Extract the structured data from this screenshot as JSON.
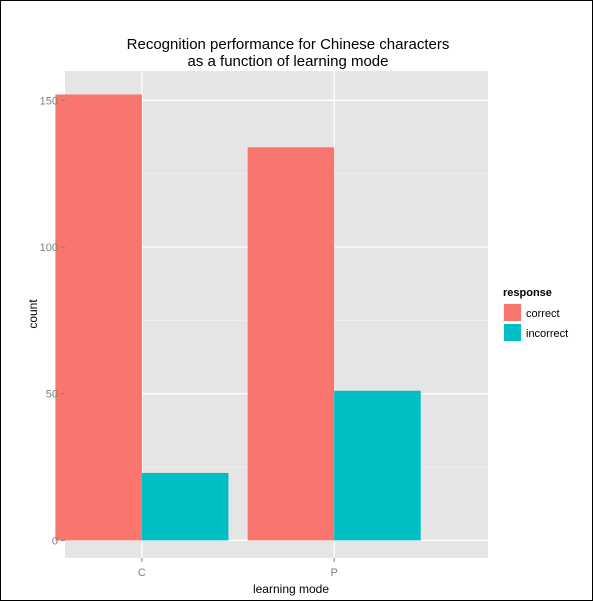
{
  "chart_data": {
    "type": "bar",
    "title_lines": [
      "Recognition performance for Chinese characters",
      "as a function of learning mode"
    ],
    "xlabel": "learning mode",
    "ylabel": "count",
    "categories": [
      "C",
      "P"
    ],
    "series": [
      {
        "name": "correct",
        "values": [
          152,
          134
        ],
        "color": "#F8766D"
      },
      {
        "name": "incorrect",
        "values": [
          23,
          51
        ],
        "color": "#00BFC4"
      }
    ],
    "ylim": [
      -6,
      160
    ],
    "yticks": [
      0,
      50,
      100,
      150
    ],
    "legend": {
      "title": "response",
      "position": "right"
    },
    "grid": true,
    "panel_background": "#E5E5E5"
  }
}
